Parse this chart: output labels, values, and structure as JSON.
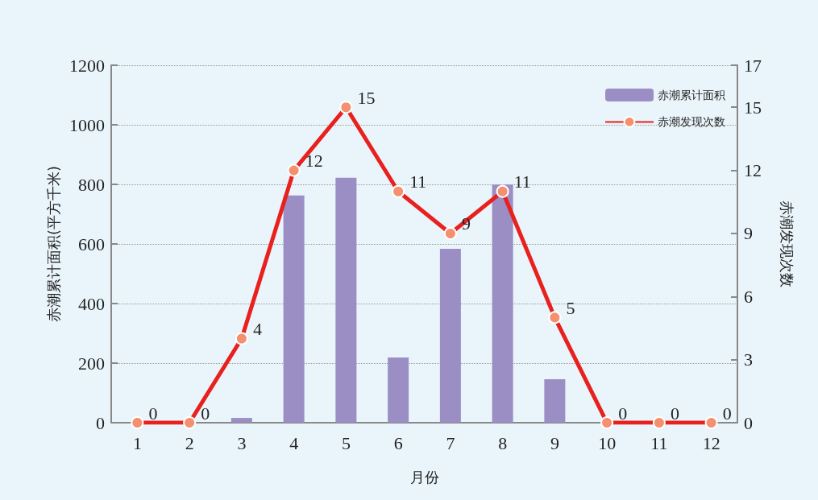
{
  "chart_data": {
    "type": "bar",
    "xlabel": "月份",
    "ylabel": "赤潮累计面积(平方千米)",
    "y2label": "赤潮发现次数",
    "categories": [
      "1",
      "2",
      "3",
      "4",
      "5",
      "6",
      "7",
      "8",
      "9",
      "10",
      "11",
      "12"
    ],
    "series": [
      {
        "name": "赤潮累计面积",
        "color": "#9b8ec4",
        "values": [
          0,
          0,
          16,
          763,
          822,
          219,
          584,
          799,
          146,
          0,
          0,
          0
        ]
      },
      {
        "name": "赤潮发现次数",
        "type": "line",
        "axis": "y2",
        "color": "#e8201e",
        "marker": "circle",
        "data_labels": true,
        "values": [
          0,
          0,
          4,
          12,
          15,
          11,
          9,
          11,
          5,
          0,
          0,
          0
        ]
      }
    ],
    "ylim": [
      0,
      1200
    ],
    "yticks": [
      0,
      200,
      400,
      600,
      800,
      1000,
      1200
    ],
    "y2lim": [
      0,
      17
    ],
    "y2ticks": [
      0,
      3,
      6,
      9,
      12,
      15,
      17
    ],
    "grid": "y",
    "legend": "top right"
  }
}
